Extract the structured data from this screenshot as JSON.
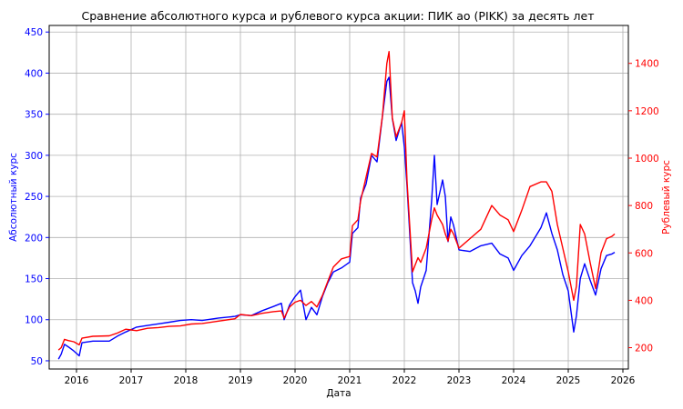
{
  "chart_data": {
    "type": "line",
    "title": "Сравнение абсолютного курса и рублевого курса акции: ПИК ао (PIKK) за десять лет",
    "xlabel": "Дата",
    "ylabel_left": "Абсолютный курс",
    "ylabel_right": "Рублевый курс",
    "xlim": [
      2015.5,
      2026.1
    ],
    "ylim_left": [
      40,
      458
    ],
    "ylim_right": [
      110,
      1560
    ],
    "x_ticks": [
      2016,
      2017,
      2018,
      2019,
      2020,
      2021,
      2022,
      2023,
      2024,
      2025,
      2026
    ],
    "x_tick_labels": [
      "2016",
      "2017",
      "2018",
      "2019",
      "2020",
      "2021",
      "2022",
      "2023",
      "2024",
      "2025",
      "2026"
    ],
    "yticks_left": [
      50,
      100,
      150,
      200,
      250,
      300,
      350,
      400,
      450
    ],
    "yticks_right": [
      200,
      400,
      600,
      800,
      1000,
      1200,
      1400
    ],
    "grid": true,
    "colors": {
      "left": "#0000ff",
      "right": "#ff0000"
    },
    "series": [
      {
        "axis": "left",
        "color": "#0000ff",
        "points": [
          [
            2015.67,
            52
          ],
          [
            2015.72,
            58
          ],
          [
            2015.78,
            70
          ],
          [
            2015.85,
            67
          ],
          [
            2015.95,
            62
          ],
          [
            2016.05,
            56
          ],
          [
            2016.1,
            72
          ],
          [
            2016.3,
            74
          ],
          [
            2016.6,
            74
          ],
          [
            2016.75,
            80
          ],
          [
            2016.9,
            85
          ],
          [
            2017.0,
            88
          ],
          [
            2017.1,
            91
          ],
          [
            2017.3,
            93
          ],
          [
            2017.5,
            95
          ],
          [
            2017.7,
            97
          ],
          [
            2017.9,
            99
          ],
          [
            2018.1,
            100
          ],
          [
            2018.3,
            99
          ],
          [
            2018.6,
            102
          ],
          [
            2018.9,
            104
          ],
          [
            2019.0,
            106
          ],
          [
            2019.2,
            105
          ],
          [
            2019.4,
            111
          ],
          [
            2019.6,
            116
          ],
          [
            2019.75,
            120
          ],
          [
            2019.8,
            100
          ],
          [
            2019.9,
            118
          ],
          [
            2020.0,
            128
          ],
          [
            2020.1,
            136
          ],
          [
            2020.2,
            100
          ],
          [
            2020.3,
            115
          ],
          [
            2020.4,
            106
          ],
          [
            2020.5,
            128
          ],
          [
            2020.6,
            145
          ],
          [
            2020.7,
            158
          ],
          [
            2020.85,
            163
          ],
          [
            2021.0,
            170
          ],
          [
            2021.05,
            205
          ],
          [
            2021.15,
            212
          ],
          [
            2021.2,
            248
          ],
          [
            2021.3,
            265
          ],
          [
            2021.4,
            300
          ],
          [
            2021.5,
            292
          ],
          [
            2021.6,
            348
          ],
          [
            2021.68,
            390
          ],
          [
            2021.72,
            395
          ],
          [
            2021.78,
            345
          ],
          [
            2021.85,
            318
          ],
          [
            2021.95,
            340
          ],
          [
            2022.0,
            310
          ],
          [
            2022.05,
            262
          ],
          [
            2022.15,
            145
          ],
          [
            2022.2,
            135
          ],
          [
            2022.25,
            120
          ],
          [
            2022.3,
            140
          ],
          [
            2022.4,
            160
          ],
          [
            2022.5,
            245
          ],
          [
            2022.55,
            300
          ],
          [
            2022.6,
            240
          ],
          [
            2022.7,
            270
          ],
          [
            2022.75,
            250
          ],
          [
            2022.8,
            195
          ],
          [
            2022.85,
            225
          ],
          [
            2022.9,
            215
          ],
          [
            2023.0,
            185
          ],
          [
            2023.2,
            183
          ],
          [
            2023.4,
            190
          ],
          [
            2023.6,
            193
          ],
          [
            2023.75,
            180
          ],
          [
            2023.9,
            175
          ],
          [
            2024.0,
            160
          ],
          [
            2024.15,
            178
          ],
          [
            2024.3,
            190
          ],
          [
            2024.5,
            212
          ],
          [
            2024.6,
            230
          ],
          [
            2024.7,
            205
          ],
          [
            2024.8,
            185
          ],
          [
            2024.9,
            155
          ],
          [
            2025.0,
            135
          ],
          [
            2025.1,
            85
          ],
          [
            2025.15,
            105
          ],
          [
            2025.22,
            150
          ],
          [
            2025.3,
            168
          ],
          [
            2025.4,
            148
          ],
          [
            2025.5,
            130
          ],
          [
            2025.6,
            162
          ],
          [
            2025.7,
            178
          ],
          [
            2025.8,
            180
          ],
          [
            2025.85,
            182
          ]
        ]
      },
      {
        "axis": "right",
        "color": "#ff0000",
        "points": [
          [
            2015.67,
            190
          ],
          [
            2015.72,
            200
          ],
          [
            2015.78,
            235
          ],
          [
            2015.85,
            230
          ],
          [
            2015.95,
            225
          ],
          [
            2016.05,
            212
          ],
          [
            2016.1,
            240
          ],
          [
            2016.3,
            248
          ],
          [
            2016.6,
            250
          ],
          [
            2016.75,
            262
          ],
          [
            2016.9,
            278
          ],
          [
            2017.0,
            275
          ],
          [
            2017.1,
            272
          ],
          [
            2017.3,
            282
          ],
          [
            2017.5,
            285
          ],
          [
            2017.7,
            290
          ],
          [
            2017.9,
            292
          ],
          [
            2018.1,
            300
          ],
          [
            2018.3,
            302
          ],
          [
            2018.6,
            312
          ],
          [
            2018.9,
            322
          ],
          [
            2019.0,
            340
          ],
          [
            2019.2,
            335
          ],
          [
            2019.4,
            345
          ],
          [
            2019.6,
            352
          ],
          [
            2019.75,
            355
          ],
          [
            2019.8,
            325
          ],
          [
            2019.9,
            372
          ],
          [
            2020.0,
            392
          ],
          [
            2020.1,
            400
          ],
          [
            2020.2,
            378
          ],
          [
            2020.3,
            395
          ],
          [
            2020.4,
            372
          ],
          [
            2020.5,
            420
          ],
          [
            2020.6,
            480
          ],
          [
            2020.7,
            540
          ],
          [
            2020.85,
            575
          ],
          [
            2021.0,
            585
          ],
          [
            2021.05,
            715
          ],
          [
            2021.15,
            740
          ],
          [
            2021.2,
            820
          ],
          [
            2021.3,
            920
          ],
          [
            2021.4,
            1020
          ],
          [
            2021.5,
            1005
          ],
          [
            2021.6,
            1180
          ],
          [
            2021.68,
            1400
          ],
          [
            2021.72,
            1450
          ],
          [
            2021.78,
            1170
          ],
          [
            2021.85,
            1090
          ],
          [
            2021.95,
            1150
          ],
          [
            2022.0,
            1200
          ],
          [
            2022.05,
            900
          ],
          [
            2022.15,
            520
          ],
          [
            2022.2,
            550
          ],
          [
            2022.25,
            580
          ],
          [
            2022.3,
            560
          ],
          [
            2022.4,
            620
          ],
          [
            2022.5,
            740
          ],
          [
            2022.55,
            790
          ],
          [
            2022.6,
            760
          ],
          [
            2022.7,
            720
          ],
          [
            2022.75,
            680
          ],
          [
            2022.8,
            650
          ],
          [
            2022.85,
            700
          ],
          [
            2022.9,
            680
          ],
          [
            2023.0,
            620
          ],
          [
            2023.2,
            660
          ],
          [
            2023.4,
            700
          ],
          [
            2023.6,
            800
          ],
          [
            2023.75,
            760
          ],
          [
            2023.9,
            740
          ],
          [
            2024.0,
            690
          ],
          [
            2024.15,
            780
          ],
          [
            2024.3,
            880
          ],
          [
            2024.5,
            900
          ],
          [
            2024.6,
            900
          ],
          [
            2024.7,
            860
          ],
          [
            2024.8,
            720
          ],
          [
            2024.9,
            620
          ],
          [
            2025.0,
            520
          ],
          [
            2025.1,
            400
          ],
          [
            2025.15,
            460
          ],
          [
            2025.22,
            720
          ],
          [
            2025.3,
            680
          ],
          [
            2025.4,
            560
          ],
          [
            2025.5,
            450
          ],
          [
            2025.6,
            600
          ],
          [
            2025.7,
            660
          ],
          [
            2025.8,
            670
          ],
          [
            2025.85,
            680
          ]
        ]
      }
    ]
  }
}
